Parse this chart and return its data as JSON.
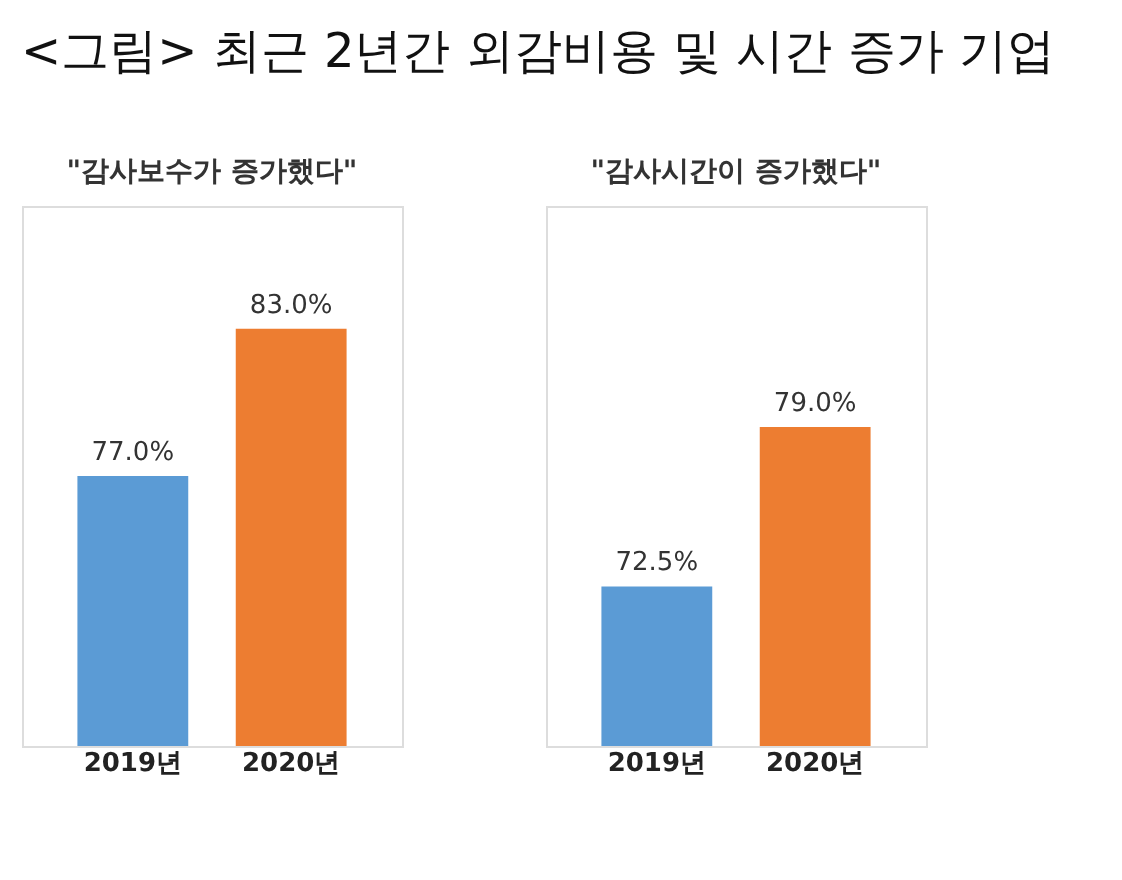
{
  "chart_data": [
    {
      "type": "bar",
      "title": "<그림> 최근 2년간 외감비용 및 시간 증가 기업",
      "subtitle": "\"감사보수가 증가했다\"",
      "categories": [
        "2019년",
        "2020년"
      ],
      "values": [
        77.0,
        83.0
      ],
      "colors": [
        "#5b9bd5",
        "#ed7d31"
      ],
      "value_labels": [
        "77.0%",
        "83.0%"
      ],
      "ylim": [
        66,
        88
      ],
      "tick_labels": "x",
      "grid": false,
      "legend": false
    },
    {
      "type": "bar",
      "subtitle": "\"감사시간이 증가했다\"",
      "categories": [
        "2019년",
        "2020년"
      ],
      "values": [
        72.5,
        79.0
      ],
      "colors": [
        "#5b9bd5",
        "#ed7d31"
      ],
      "value_labels": [
        "72.5%",
        "79.0%"
      ],
      "ylim": [
        66,
        88
      ],
      "tick_labels": "x",
      "grid": false,
      "legend": false
    }
  ]
}
